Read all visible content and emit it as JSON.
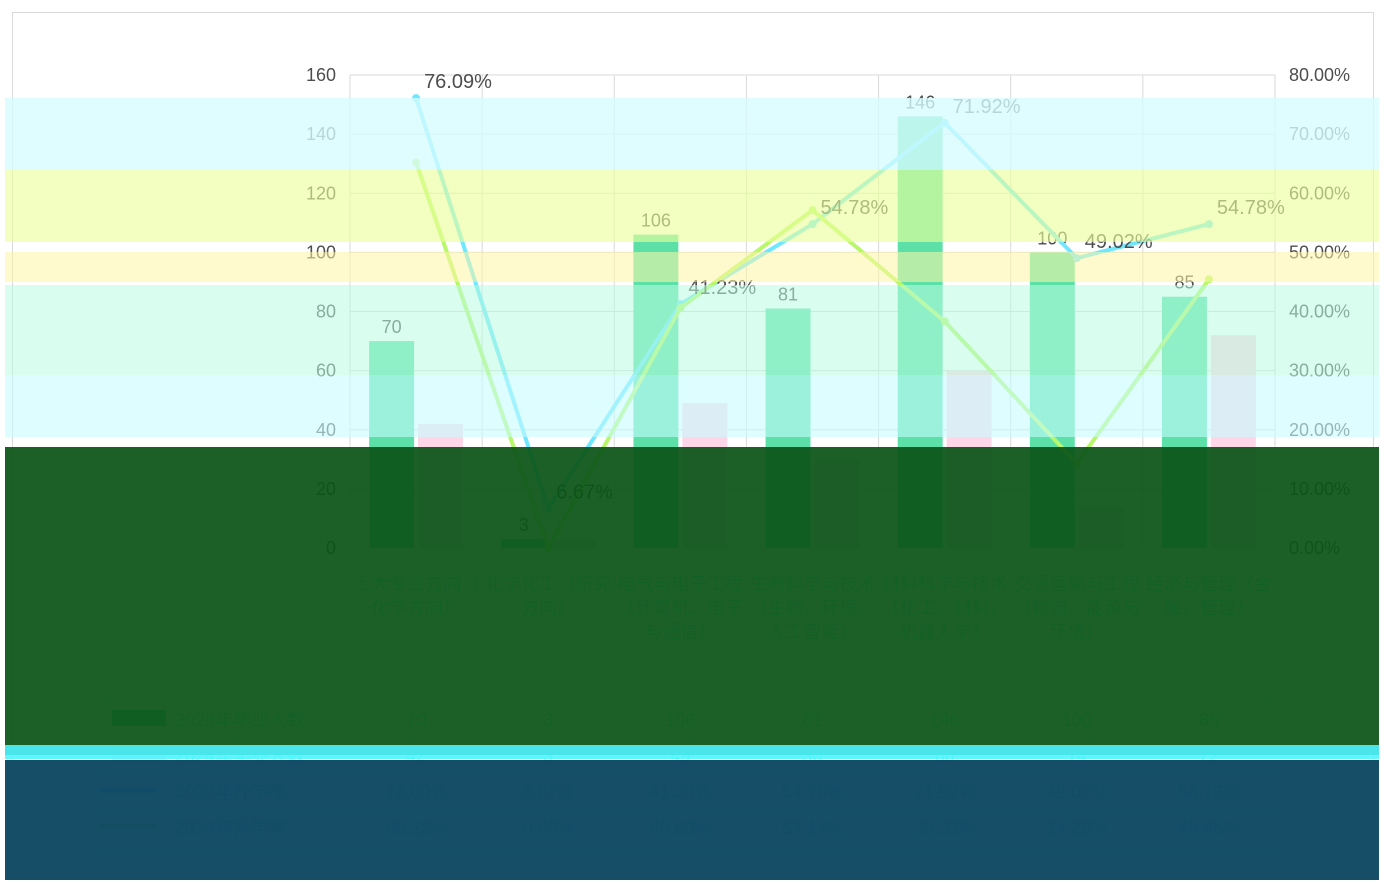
{
  "colors": {
    "bar_2023": "#5ce0a8",
    "bar_2024": "#ffd6e7",
    "line_2023": "#6ee7ff",
    "line_2024": "#b8f76a",
    "axis_text": "#4d4d4d",
    "grid": "#d9d9d9",
    "glitch_cyan": "#c7fbff",
    "glitch_yellow": "#eaff9a",
    "glitch_green_dark": "#0b5418",
    "glitch_navy": "#0d4661"
  },
  "chart_data": {
    "type": "bar",
    "categories": [
      "上大专业方向（化学方向）",
      "化学化工（研究方向）",
      "电气与电子工程（计算机、电子与通信）",
      "生命科学与技术（生物、环境、人工智能）",
      "材料科学与技术（化工、材料、机器人学）",
      "交通运输与工程（物流、能源与环境）",
      "经济与管理（金融、管理）"
    ],
    "bar_series": [
      {
        "name": "2023年毕业人数",
        "values": [
          70,
          3,
          106,
          81,
          146,
          100,
          85
        ]
      },
      {
        "name": "2024年毕业人数",
        "values": [
          42,
          3,
          49,
          30,
          60,
          14,
          72
        ]
      }
    ],
    "line_series": [
      {
        "name": "2023年升学率",
        "values": [
          76.09,
          6.67,
          41.23,
          54.78,
          71.92,
          49.02,
          54.78
        ]
      },
      {
        "name": "2024年升学率",
        "values": [
          65.22,
          0.0,
          40.6,
          57.14,
          38.33,
          14.29,
          45.45
        ]
      }
    ],
    "y_left": {
      "min": 0,
      "max": 160,
      "ticks": [
        0,
        20,
        40,
        60,
        80,
        100,
        120,
        140,
        160
      ]
    },
    "y_right": {
      "min": 0,
      "max": 80,
      "ticks": [
        "0.00%",
        "10.00%",
        "20.00%",
        "30.00%",
        "40.00%",
        "50.00%",
        "60.00%",
        "70.00%",
        "80.00%"
      ]
    },
    "bar_labels": [
      "70",
      "3",
      "106",
      "81",
      "146",
      "100",
      "85"
    ],
    "line_labels_2023": [
      "76.09%",
      "6.67%",
      "41.23%",
      "54.78%",
      "71.92%",
      "49.02%",
      "54.78%"
    ],
    "table_rows": [
      {
        "label": "2023年毕业人数",
        "cells": [
          "70",
          "3",
          "106",
          "81",
          "146",
          "100",
          "85"
        ]
      },
      {
        "label": "2024年毕业人数",
        "cells": [
          "42",
          "3",
          "49",
          "30",
          "60",
          "14",
          "72"
        ]
      },
      {
        "label": "2023年升学率",
        "cells": [
          "76.09%",
          "6.67%",
          "41.23%",
          "54.78%",
          "71.92%",
          "49.02%",
          "54.78%"
        ]
      },
      {
        "label": "2024年升学率",
        "cells": [
          "65.22%",
          "0.00%",
          "40.60%",
          "57.14%",
          "38.33%",
          "14.29%",
          "45.45%"
        ]
      }
    ],
    "legend_position": "table-below",
    "grid": true
  }
}
